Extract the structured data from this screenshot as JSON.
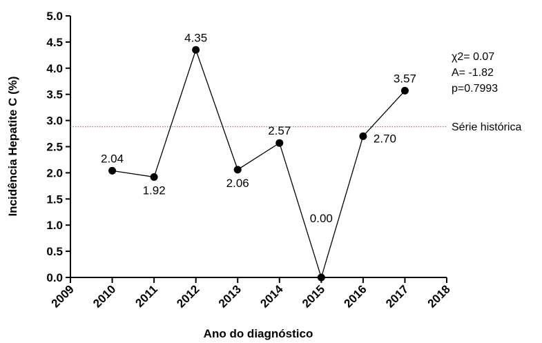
{
  "chart_data": {
    "type": "line",
    "xlabel": "Ano do diagnóstico",
    "ylabel": "Incidência Hepatite C (%)",
    "xlim": [
      2009,
      2018
    ],
    "ylim": [
      0,
      5
    ],
    "x_ticks": [
      "2009",
      "2010",
      "2011",
      "2012",
      "2013",
      "2014",
      "2015",
      "2016",
      "2017",
      "2018"
    ],
    "y_ticks": [
      "0.0",
      "0.5",
      "1.0",
      "1.5",
      "2.0",
      "2.5",
      "3.0",
      "3.5",
      "4.0",
      "4.5",
      "5.0"
    ],
    "series": [
      {
        "x": [
          2010,
          2011,
          2012,
          2013,
          2014,
          2015,
          2016,
          2017
        ],
        "values": [
          2.04,
          1.92,
          4.35,
          2.06,
          2.57,
          0.0,
          2.7,
          3.57
        ],
        "labels": [
          "2.04",
          "1.92",
          "4.35",
          "2.06",
          "2.57",
          "0.00",
          "2.70",
          "3.57"
        ],
        "label_positions": [
          "above",
          "below",
          "above",
          "below",
          "above",
          "above",
          "right",
          "above"
        ],
        "color": "#000000"
      }
    ],
    "reference_line": {
      "value": 2.88,
      "label": "Série histórica",
      "color": "#e0473c",
      "style": "dotted"
    },
    "stats": {
      "chi2": "χ2= 0.07",
      "a": "A= -1.82",
      "p": "p=0.7993"
    },
    "grid": false,
    "legend": "none"
  }
}
